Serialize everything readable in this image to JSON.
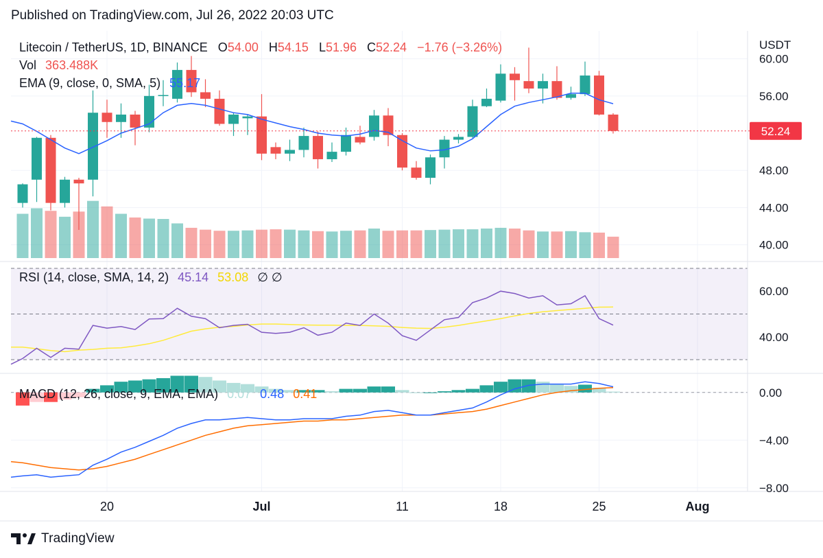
{
  "header": {
    "published": "Published on TradingView.com, Jul 26, 2022 20:03 UTC"
  },
  "footer": {
    "brand": "TradingView"
  },
  "colors": {
    "up": "#26a69a",
    "down": "#ef5350",
    "ema": "#2962ff",
    "rsi": "#7e57c2",
    "rsi_sma": "#ffeb3b",
    "macd": "#2962ff",
    "signal": "#ff6d00",
    "price_line": "#f23645"
  },
  "legend": {
    "symbol": "Litecoin / TetherUS, 1D, BINANCE",
    "o_label": "O",
    "o_value": "54.00",
    "h_label": "H",
    "h_value": "54.15",
    "l_label": "L",
    "l_value": "51.96",
    "c_label": "C",
    "c_value": "52.24",
    "change": "−1.76 (−3.26%)",
    "vol_label": "Vol",
    "vol_value": "363.488K",
    "ema_label": "EMA (9, close, 0, SMA, 5)",
    "ema_value": "55.17",
    "rsi_label": "RSI (14, close, SMA, 14, 2)",
    "rsi_value": "45.14",
    "rsi_sma_value": "53.08",
    "rsi_extra": "∅ ∅",
    "macd_label": "MACD (12, 26, close, 9, EMA, EMA)",
    "macd_hist_value": "0.07",
    "macd_value": "0.48",
    "signal_value": "0.41"
  },
  "chart_data": {
    "type": "candlestick",
    "currency": "USDT",
    "last_price_label": "52.24",
    "price_axis": {
      "ticks": [
        60,
        56,
        48,
        44,
        40
      ],
      "tick_labels": [
        "60.00",
        "56.00",
        "48.00",
        "44.00",
        "40.00"
      ],
      "range": [
        38.2,
        63.0
      ]
    },
    "rsi_axis": {
      "ticks": [
        60,
        40
      ],
      "tick_labels": [
        "60.00",
        "40.00"
      ],
      "bands": [
        70,
        50,
        30
      ],
      "range": [
        24,
        73
      ]
    },
    "macd_axis": {
      "ticks": [
        0,
        -4,
        -8
      ],
      "tick_labels": [
        "0.00",
        "−4.00",
        "−8.00"
      ],
      "range": [
        -8.3,
        1.6
      ]
    },
    "x_axis": {
      "ticks": [
        {
          "index": 6,
          "label": "20"
        },
        {
          "index": 17,
          "label": "Jul"
        },
        {
          "index": 27,
          "label": "11"
        },
        {
          "index": 34,
          "label": "18"
        },
        {
          "index": 41,
          "label": "25"
        },
        {
          "index": 48,
          "label": "Aug"
        }
      ]
    },
    "candles": [
      [
        44.5,
        46.5,
        44.0,
        46.6
      ],
      [
        47.0,
        51.5,
        44.6,
        51.6
      ],
      [
        51.5,
        44.5,
        43.7,
        51.8
      ],
      [
        44.5,
        47.0,
        44.0,
        47.3
      ],
      [
        47.0,
        46.6,
        41.6,
        47.2
      ],
      [
        47.0,
        54.2,
        45.2,
        56.6
      ],
      [
        54.2,
        53.2,
        51.5,
        55.6
      ],
      [
        53.2,
        54.0,
        51.5,
        55.2
      ],
      [
        54.0,
        52.6,
        50.7,
        54.4
      ],
      [
        52.6,
        56.0,
        52.1,
        57.2
      ],
      [
        56.0,
        56.1,
        54.9,
        57.7
      ],
      [
        55.7,
        58.8,
        55.3,
        59.6
      ],
      [
        58.8,
        56.4,
        55.9,
        60.3
      ],
      [
        56.4,
        55.7,
        54.8,
        57.8
      ],
      [
        55.7,
        53.0,
        52.8,
        56.6
      ],
      [
        53.0,
        54.0,
        51.7,
        54.2
      ],
      [
        53.6,
        53.8,
        51.8,
        54.0
      ],
      [
        53.8,
        49.8,
        49.1,
        56.2
      ],
      [
        50.5,
        49.8,
        49.2,
        51.0
      ],
      [
        49.8,
        50.2,
        49.0,
        51.3
      ],
      [
        50.2,
        51.7,
        49.4,
        52.6
      ],
      [
        51.7,
        49.2,
        48.2,
        52.2
      ],
      [
        49.2,
        50.0,
        48.9,
        51.0
      ],
      [
        50.0,
        51.8,
        49.6,
        52.6
      ],
      [
        51.6,
        51.0,
        50.8,
        52.8
      ],
      [
        51.6,
        53.9,
        51.2,
        54.5
      ],
      [
        53.9,
        51.8,
        50.6,
        54.7
      ],
      [
        51.8,
        48.3,
        48.0,
        52.0
      ],
      [
        48.3,
        47.2,
        47.0,
        49.0
      ],
      [
        47.2,
        49.4,
        46.5,
        49.7
      ],
      [
        49.4,
        51.3,
        48.2,
        51.7
      ],
      [
        51.3,
        51.6,
        50.9,
        51.9
      ],
      [
        51.6,
        54.9,
        51.5,
        55.6
      ],
      [
        54.9,
        55.7,
        54.8,
        56.8
      ],
      [
        55.5,
        58.4,
        55.3,
        59.4
      ],
      [
        58.4,
        57.7,
        55.5,
        59.1
      ],
      [
        57.6,
        56.8,
        56.3,
        61.2
      ],
      [
        56.8,
        57.6,
        55.2,
        58.4
      ],
      [
        57.6,
        55.8,
        55.6,
        59.2
      ],
      [
        55.8,
        56.2,
        55.6,
        57.0
      ],
      [
        56.2,
        58.2,
        56.0,
        59.7
      ],
      [
        58.2,
        54.0,
        53.9,
        58.7
      ],
      [
        54.0,
        52.24,
        51.96,
        54.15
      ]
    ],
    "volume": [
      1.2,
      1.35,
      1.28,
      1.12,
      1.26,
      1.55,
      1.4,
      1.2,
      1.1,
      1.07,
      1.06,
      0.94,
      0.82,
      0.77,
      0.74,
      0.74,
      0.75,
      0.77,
      0.78,
      0.77,
      0.75,
      0.73,
      0.72,
      0.74,
      0.75,
      0.8,
      0.74,
      0.75,
      0.75,
      0.76,
      0.77,
      0.78,
      0.78,
      0.8,
      0.82,
      0.8,
      0.75,
      0.72,
      0.72,
      0.73,
      0.7,
      0.69,
      0.58
    ],
    "ema": [
      53.0,
      52.2,
      51.3,
      50.4,
      49.8,
      50.5,
      51.2,
      52.0,
      52.5,
      53.0,
      54.2,
      55.0,
      55.2,
      55.0,
      54.6,
      54.2,
      54.0,
      53.5,
      53.1,
      52.7,
      52.4,
      52.0,
      51.8,
      51.7,
      51.9,
      52.3,
      52.1,
      51.2,
      50.4,
      50.1,
      50.2,
      50.6,
      51.4,
      52.7,
      54.0,
      54.9,
      55.3,
      55.6,
      55.9,
      56.3,
      56.3,
      55.6,
      55.17
    ],
    "rsi": [
      30.5,
      35.0,
      31.0,
      35.0,
      34.6,
      45.0,
      43.8,
      44.5,
      43.2,
      47.8,
      48.0,
      52.5,
      49.0,
      48.0,
      44.0,
      45.0,
      45.5,
      42.0,
      41.5,
      42.0,
      44.0,
      40.7,
      42.0,
      46.0,
      45.0,
      50.0,
      46.0,
      40.5,
      38.5,
      43.0,
      47.5,
      48.5,
      55.0,
      57.0,
      60.0,
      59.0,
      57.0,
      58.0,
      54.0,
      54.5,
      58.0,
      48.0,
      45.14
    ],
    "rsi_sma": [
      35.5,
      34.8,
      34.0,
      33.5,
      34.2,
      34.5,
      35.0,
      35.2,
      36.0,
      37.0,
      38.5,
      40.5,
      42.5,
      43.5,
      44.2,
      44.6,
      45.2,
      45.6,
      45.6,
      45.4,
      45.2,
      45.1,
      45.1,
      45.0,
      45.0,
      44.8,
      44.6,
      44.1,
      43.8,
      43.7,
      44.2,
      45.0,
      46.0,
      47.0,
      48.0,
      49.2,
      50.2,
      51.0,
      51.5,
      52.0,
      52.5,
      53.0,
      53.08
    ],
    "macd": [
      -7.0,
      -6.9,
      -7.1,
      -7.0,
      -6.9,
      -6.1,
      -5.6,
      -5.0,
      -4.6,
      -4.1,
      -3.6,
      -3.0,
      -2.6,
      -2.3,
      -2.3,
      -2.2,
      -2.1,
      -2.2,
      -2.3,
      -2.3,
      -2.2,
      -2.2,
      -2.2,
      -2.0,
      -1.9,
      -1.6,
      -1.5,
      -1.7,
      -1.9,
      -1.9,
      -1.7,
      -1.5,
      -1.3,
      -0.8,
      -0.2,
      0.3,
      0.6,
      0.7,
      0.7,
      0.7,
      0.9,
      0.75,
      0.48
    ],
    "signal": [
      -5.9,
      -6.1,
      -6.3,
      -6.4,
      -6.5,
      -6.4,
      -6.2,
      -5.9,
      -5.6,
      -5.2,
      -4.8,
      -4.4,
      -4.0,
      -3.6,
      -3.3,
      -3.0,
      -2.8,
      -2.7,
      -2.6,
      -2.5,
      -2.4,
      -2.4,
      -2.3,
      -2.3,
      -2.2,
      -2.1,
      -2.0,
      -1.9,
      -1.9,
      -1.9,
      -1.8,
      -1.7,
      -1.6,
      -1.4,
      -1.1,
      -0.8,
      -0.5,
      -0.2,
      0.0,
      0.15,
      0.25,
      0.35,
      0.41
    ],
    "macd_hist": [
      -1.1,
      -0.8,
      -0.8,
      -0.6,
      -0.4,
      0.3,
      0.6,
      0.9,
      1.0,
      1.1,
      1.2,
      1.4,
      1.4,
      1.3,
      1.0,
      0.8,
      0.7,
      0.5,
      0.3,
      0.2,
      0.2,
      0.2,
      0.1,
      0.3,
      0.3,
      0.5,
      0.5,
      0.2,
      0.0,
      0.0,
      0.1,
      0.2,
      0.3,
      0.6,
      0.9,
      1.1,
      1.1,
      0.9,
      0.7,
      0.55,
      0.65,
      0.4,
      0.07
    ]
  }
}
